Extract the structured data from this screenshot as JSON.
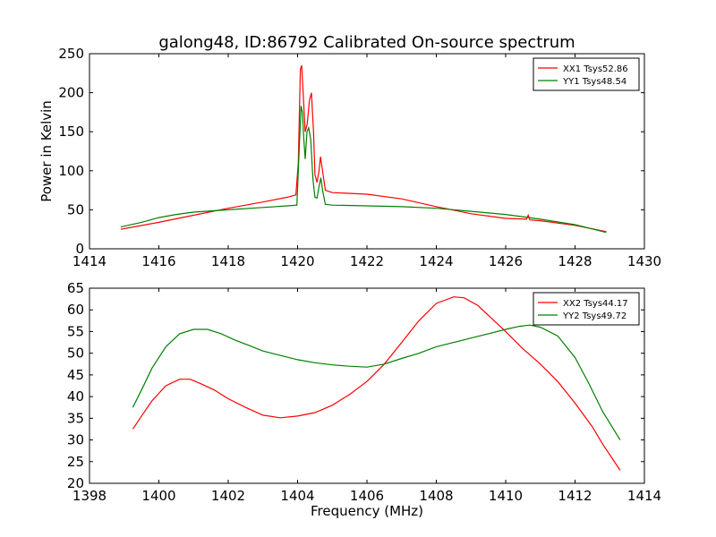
{
  "chart_data": [
    {
      "type": "line",
      "title": "galong48, ID:86792 Calibrated On-source spectrum",
      "xlabel": "",
      "ylabel": "Power in Kelvin",
      "xlim": [
        1414,
        1430
      ],
      "ylim": [
        0,
        250
      ],
      "xticks": [
        1414,
        1416,
        1418,
        1420,
        1422,
        1424,
        1426,
        1428,
        1430
      ],
      "yticks": [
        0,
        50,
        100,
        150,
        200,
        250
      ],
      "legend_position": "top-right",
      "series": [
        {
          "name": "XX1 Tsys52.86",
          "color": "#ff0000",
          "x": [
            1414.9,
            1416,
            1417,
            1418,
            1419,
            1419.7,
            1419.95,
            1420.02,
            1420.08,
            1420.12,
            1420.16,
            1420.22,
            1420.28,
            1420.34,
            1420.4,
            1420.46,
            1420.5,
            1420.56,
            1420.62,
            1420.66,
            1420.72,
            1420.8,
            1421,
            1422,
            1423,
            1424,
            1425,
            1426,
            1426.6,
            1426.65,
            1426.7,
            1427,
            1428,
            1428.9
          ],
          "y": [
            25,
            34,
            43,
            52,
            60,
            66,
            69,
            110,
            230,
            235,
            200,
            150,
            160,
            190,
            200,
            150,
            95,
            85,
            100,
            118,
            100,
            75,
            72,
            70,
            64,
            54,
            45,
            39,
            38,
            43,
            37,
            36,
            30,
            22
          ]
        },
        {
          "name": "YY1 Tsys48.54",
          "color": "#008000",
          "x": [
            1414.9,
            1415.5,
            1416,
            1416.5,
            1417,
            1418,
            1419,
            1419.7,
            1419.98,
            1420.05,
            1420.1,
            1420.14,
            1420.18,
            1420.22,
            1420.27,
            1420.32,
            1420.38,
            1420.44,
            1420.5,
            1420.56,
            1420.62,
            1420.67,
            1420.72,
            1420.8,
            1421,
            1422,
            1423,
            1424,
            1425,
            1426,
            1427,
            1428,
            1428.9
          ],
          "y": [
            28,
            34,
            40,
            44,
            47,
            50,
            53,
            55,
            56,
            130,
            183,
            175,
            140,
            115,
            150,
            155,
            140,
            90,
            66,
            65,
            80,
            91,
            75,
            57,
            56,
            55,
            54,
            52,
            48,
            44,
            38,
            31,
            21
          ]
        }
      ]
    },
    {
      "type": "line",
      "title": "",
      "xlabel": "Frequency (MHz)",
      "ylabel": "",
      "xlim": [
        1398,
        1414
      ],
      "ylim": [
        20,
        65
      ],
      "xticks": [
        1398,
        1400,
        1402,
        1404,
        1406,
        1408,
        1410,
        1412,
        1414
      ],
      "yticks": [
        20,
        25,
        30,
        35,
        40,
        45,
        50,
        55,
        60,
        65
      ],
      "legend_position": "top-right",
      "series": [
        {
          "name": "XX2 Tsys44.17",
          "color": "#ff0000",
          "x": [
            1399.25,
            1399.5,
            1399.8,
            1400.2,
            1400.6,
            1400.9,
            1401.2,
            1401.6,
            1402,
            1402.5,
            1403,
            1403.5,
            1404,
            1404.5,
            1405,
            1405.5,
            1406,
            1406.5,
            1407,
            1407.5,
            1408,
            1408.5,
            1408.8,
            1409.2,
            1409.6,
            1410,
            1410.5,
            1411,
            1411.5,
            1412,
            1412.5,
            1412.8,
            1413.3
          ],
          "y": [
            32.5,
            35.5,
            39,
            42.5,
            44,
            44,
            43,
            41.5,
            39.5,
            37.5,
            35.7,
            35.1,
            35.5,
            36.3,
            38,
            40.5,
            43.5,
            47.5,
            52.5,
            57.5,
            61.5,
            63,
            62.8,
            61,
            58,
            55,
            51,
            47.5,
            43.5,
            38.5,
            33,
            29,
            23
          ]
        },
        {
          "name": "YY2 Tsys49.72",
          "color": "#008000",
          "x": [
            1399.25,
            1399.5,
            1399.8,
            1400.2,
            1400.6,
            1401,
            1401.4,
            1401.8,
            1402.2,
            1402.6,
            1403,
            1403.5,
            1404,
            1404.5,
            1405,
            1405.5,
            1406,
            1406.5,
            1407,
            1407.5,
            1408,
            1408.5,
            1409,
            1409.5,
            1410,
            1410.4,
            1410.7,
            1411,
            1411.5,
            1412,
            1412.4,
            1412.8,
            1413.3
          ],
          "y": [
            37.5,
            41.5,
            46.5,
            51.5,
            54.5,
            55.5,
            55.5,
            54.5,
            53,
            51.8,
            50.5,
            49.5,
            48.5,
            47.8,
            47.3,
            47,
            46.8,
            47.5,
            48.8,
            50,
            51.5,
            52.5,
            53.5,
            54.5,
            55.5,
            56.2,
            56.5,
            56,
            54,
            49,
            43,
            36.5,
            30
          ]
        }
      ]
    }
  ]
}
